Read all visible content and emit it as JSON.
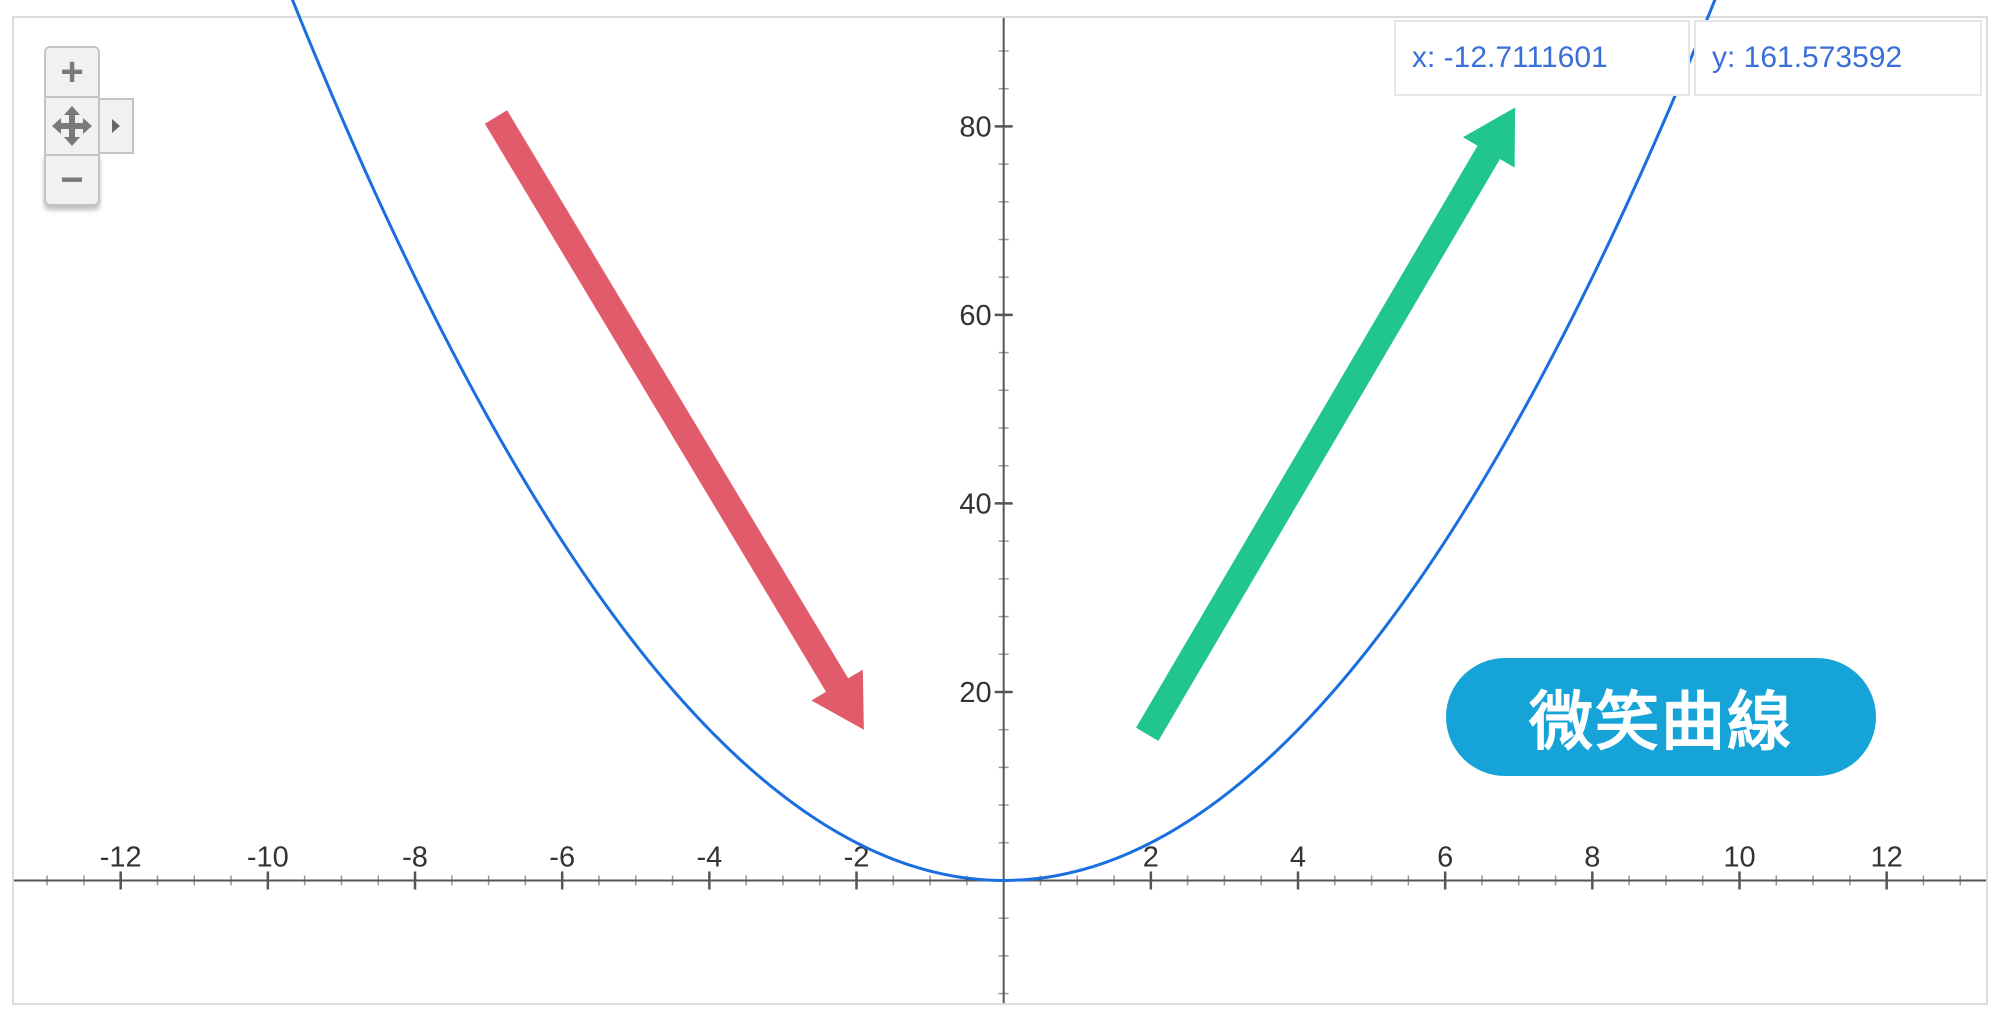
{
  "chart_data": {
    "type": "line",
    "function": "y = x^2",
    "xlim": [
      -13.45,
      13.35
    ],
    "ylim": [
      -13.0,
      91.5
    ],
    "x_ticks": [
      -12,
      -10,
      -8,
      -6,
      -4,
      -2,
      2,
      4,
      6,
      8,
      10,
      12
    ],
    "x_tick_labels": [
      "-12",
      "-10",
      "-8",
      "-6",
      "-4",
      "-2",
      "2",
      "4",
      "6",
      "8",
      "10",
      "12"
    ],
    "y_ticks": [
      20,
      40,
      60,
      80
    ],
    "y_tick_labels": [
      "20",
      "40",
      "60",
      "80"
    ],
    "grid": false,
    "series": [
      {
        "color": "#1a6fe0"
      }
    ],
    "annotations": [
      {
        "type": "arrow",
        "color": "#e25b6a",
        "from": [
          -6.9,
          81.0
        ],
        "to": [
          -1.9,
          16.0
        ]
      },
      {
        "type": "arrow",
        "color": "#21c68e",
        "from": [
          1.95,
          15.5
        ],
        "to": [
          6.95,
          82.0
        ]
      }
    ]
  },
  "coordinates": {
    "x_label": "x: -12.7111601",
    "y_label": "y: 161.573592"
  },
  "badge": {
    "text": "微笑曲線",
    "color": "#16a4d8"
  },
  "controls": {
    "zoom_in": "+",
    "zoom_out": "−",
    "pan_icon": "move-icon",
    "expand_icon": "caret-right-icon"
  }
}
